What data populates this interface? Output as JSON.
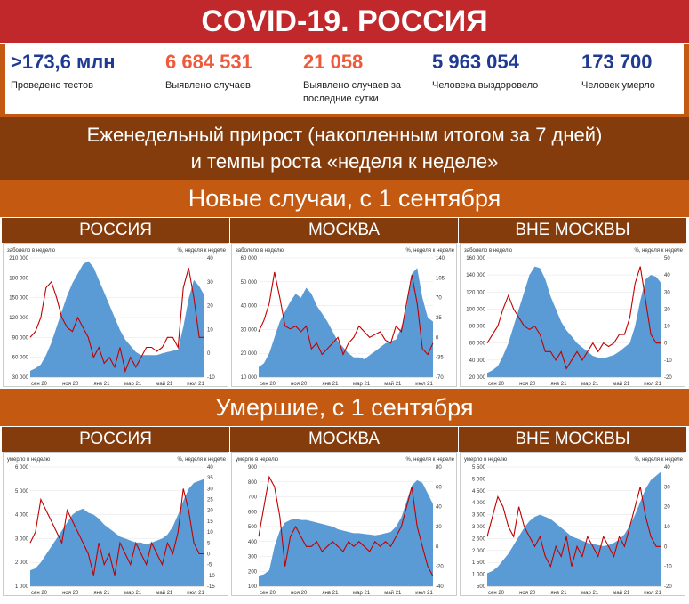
{
  "title": "COVID-19. РОССИЯ",
  "stats": [
    {
      "value": ">173,6 млн",
      "label": "Проведено тестов",
      "color": "#1f3a93"
    },
    {
      "value": "6 684 531",
      "label": "Выявлено случаев",
      "color": "#ee5a3a"
    },
    {
      "value": "21 058",
      "label": "Выявлено случаев за последние сутки",
      "color": "#ee5a3a"
    },
    {
      "value": "5 963 054",
      "label": "Человека выздоровело",
      "color": "#1f3a93"
    },
    {
      "value": "173 700",
      "label": "Человек умерло",
      "color": "#1f3a93"
    }
  ],
  "weekly_line1": "Еженедельный прирост (накопленным итогом за 7 дней)",
  "weekly_line2": "и темпы роста «неделя к неделе»",
  "section_new": "Новые случаи, с 1 сентября",
  "section_deaths": "Умершие, с 1 сентября",
  "regions": [
    "РОССИЯ",
    "МОСКВА",
    "ВНЕ МОСКВЫ"
  ],
  "colors": {
    "area": "#5b9bd5",
    "line": "#c00000",
    "title_bar": "#c0282b",
    "band_orange": "#c45911",
    "band_brown": "#843c0c"
  },
  "chart_data": [
    {
      "type": "area",
      "section": "new",
      "region": "РОССИЯ",
      "ylabel_left": "заболело в неделю",
      "ylabel_right": "%, неделя к неделе",
      "y_ticks": [
        "210 000",
        "180 000",
        "150 000",
        "120 000",
        "90 000",
        "60 000",
        "30 000"
      ],
      "y_range": [
        20000,
        210000
      ],
      "y2_ticks": [
        "40",
        "30",
        "20",
        "10",
        "0",
        "-10"
      ],
      "y2_range": [
        -15,
        45
      ],
      "x_ticks": [
        "сен 20",
        "ноя 20",
        "янв 21",
        "мар 21",
        "май 21",
        "июл 21"
      ],
      "area": [
        30000,
        34000,
        40000,
        55000,
        75000,
        100000,
        125000,
        150000,
        170000,
        185000,
        200000,
        205000,
        195000,
        175000,
        155000,
        135000,
        115000,
        95000,
        80000,
        70000,
        60000,
        55000,
        55000,
        55000,
        55000,
        58000,
        60000,
        62000,
        64000,
        100000,
        145000,
        175000,
        165000,
        150000
      ],
      "line": [
        5,
        8,
        15,
        30,
        33,
        25,
        15,
        10,
        8,
        15,
        10,
        5,
        -5,
        0,
        -8,
        -5,
        -10,
        0,
        -12,
        -5,
        -10,
        -5,
        0,
        0,
        -2,
        0,
        5,
        5,
        0,
        30,
        40,
        25,
        5,
        5
      ]
    },
    {
      "type": "area",
      "section": "new",
      "region": "МОСКВА",
      "ylabel_left": "заболело в неделю",
      "ylabel_right": "%, неделя к неделе",
      "y_ticks": [
        "60 000",
        "50 000",
        "40 000",
        "30 000",
        "20 000",
        "10 000"
      ],
      "y_range": [
        0,
        60000
      ],
      "y2_ticks": [
        "140",
        "105",
        "70",
        "35",
        "0",
        "-35",
        "-70"
      ],
      "y2_range": [
        -70,
        140
      ],
      "x_ticks": [
        "сен 20",
        "ноя 20",
        "янв 21",
        "мар 21",
        "май 21",
        "июл 21"
      ],
      "area": [
        5000,
        7000,
        12000,
        20000,
        28000,
        33000,
        38000,
        42000,
        40000,
        45000,
        42000,
        36000,
        32000,
        28000,
        23000,
        18000,
        15000,
        12000,
        10000,
        10000,
        9000,
        11000,
        13000,
        15000,
        17000,
        18000,
        19000,
        25000,
        35000,
        52000,
        55000,
        40000,
        30000,
        28000
      ],
      "line": [
        10,
        30,
        60,
        115,
        70,
        20,
        15,
        20,
        10,
        20,
        -20,
        -10,
        -30,
        -20,
        -10,
        0,
        -30,
        -10,
        0,
        20,
        10,
        0,
        5,
        10,
        -5,
        -10,
        20,
        10,
        60,
        110,
        60,
        -20,
        -30,
        -10
      ]
    },
    {
      "type": "area",
      "section": "new",
      "region": "ВНЕ МОСКВЫ",
      "ylabel_left": "заболело в неделю",
      "ylabel_right": "%, неделя к неделе",
      "y_ticks": [
        "160 000",
        "140 000",
        "120 000",
        "100 000",
        "80 000",
        "60 000",
        "40 000",
        "20 000"
      ],
      "y_range": [
        20000,
        160000
      ],
      "y2_ticks": [
        "50",
        "40",
        "30",
        "20",
        "10",
        "0",
        "-10",
        "-20"
      ],
      "y2_range": [
        -20,
        50
      ],
      "x_ticks": [
        "сен 20",
        "ноя 20",
        "янв 21",
        "мар 21",
        "май 21",
        "июл 21"
      ],
      "area": [
        25000,
        28000,
        33000,
        45000,
        60000,
        80000,
        100000,
        120000,
        140000,
        150000,
        148000,
        135000,
        115000,
        100000,
        85000,
        75000,
        68000,
        60000,
        55000,
        50000,
        45000,
        43000,
        42000,
        44000,
        46000,
        50000,
        55000,
        60000,
        80000,
        110000,
        135000,
        140000,
        138000,
        130000
      ],
      "line": [
        0,
        5,
        10,
        20,
        28,
        20,
        15,
        10,
        8,
        10,
        5,
        -5,
        -5,
        -10,
        -5,
        -15,
        -10,
        -5,
        -10,
        -5,
        0,
        -5,
        0,
        -2,
        0,
        5,
        5,
        15,
        35,
        45,
        25,
        5,
        0,
        0
      ]
    },
    {
      "type": "area",
      "section": "deaths",
      "region": "РОССИЯ",
      "ylabel_left": "умерло в неделю",
      "ylabel_right": "%, неделя к неделе",
      "y_ticks": [
        "6 000",
        "5 000",
        "4 000",
        "3 000",
        "2 000",
        "1 000"
      ],
      "y_range": [
        0,
        6000
      ],
      "y2_ticks": [
        "40",
        "35",
        "30",
        "25",
        "20",
        "15",
        "10",
        "5",
        "0",
        "-5",
        "-10",
        "-15"
      ],
      "y2_range": [
        -15,
        40
      ],
      "x_ticks": [
        "сен 20",
        "ноя 20",
        "янв 21",
        "мар 21",
        "май 21",
        "июл 21"
      ],
      "area": [
        800,
        900,
        1200,
        1600,
        2000,
        2400,
        2800,
        3200,
        3600,
        3800,
        3900,
        3700,
        3600,
        3400,
        3100,
        2900,
        2700,
        2500,
        2400,
        2300,
        2200,
        2200,
        2100,
        2200,
        2300,
        2400,
        2600,
        3000,
        3600,
        4300,
        4900,
        5200,
        5300,
        5400
      ],
      "line": [
        5,
        10,
        25,
        20,
        15,
        10,
        5,
        20,
        15,
        10,
        5,
        0,
        -10,
        5,
        -5,
        0,
        -10,
        5,
        0,
        -5,
        5,
        0,
        -5,
        5,
        0,
        -5,
        5,
        0,
        10,
        30,
        20,
        5,
        0,
        0
      ]
    },
    {
      "type": "area",
      "section": "deaths",
      "region": "МОСКВА",
      "ylabel_left": "умерло в неделю",
      "ylabel_right": "%, неделя к неделе",
      "y_ticks": [
        "900",
        "800",
        "700",
        "600",
        "500",
        "400",
        "300",
        "200",
        "100"
      ],
      "y_range": [
        0,
        900
      ],
      "y2_ticks": [
        "80",
        "60",
        "40",
        "20",
        "0",
        "-20",
        "-40"
      ],
      "y2_range": [
        -40,
        80
      ],
      "x_ticks": [
        "сен 20",
        "ноя 20",
        "янв 21",
        "мар 21",
        "май 21",
        "июл 21"
      ],
      "area": [
        80,
        90,
        120,
        300,
        420,
        480,
        500,
        510,
        500,
        500,
        490,
        480,
        470,
        460,
        450,
        430,
        420,
        410,
        400,
        400,
        395,
        390,
        385,
        390,
        400,
        410,
        450,
        520,
        640,
        760,
        800,
        780,
        700,
        620
      ],
      "line": [
        10,
        40,
        70,
        60,
        30,
        -20,
        10,
        20,
        10,
        0,
        0,
        5,
        -5,
        0,
        5,
        0,
        -5,
        5,
        0,
        5,
        0,
        -5,
        5,
        0,
        5,
        0,
        10,
        20,
        40,
        60,
        20,
        0,
        -20,
        -30
      ]
    },
    {
      "type": "area",
      "section": "deaths",
      "region": "ВНЕ МОСКВЫ",
      "ylabel_left": "умерло в неделю",
      "ylabel_right": "%, неделя к неделе",
      "y_ticks": [
        "5 500",
        "5 000",
        "4 500",
        "4 000",
        "3 500",
        "3 000",
        "2 500",
        "2 000",
        "1 500",
        "1 000",
        "500"
      ],
      "y_range": [
        0,
        5500
      ],
      "y2_ticks": [
        "40",
        "30",
        "20",
        "10",
        "0",
        "-10",
        "-20"
      ],
      "y2_range": [
        -20,
        40
      ],
      "x_ticks": [
        "сен 20",
        "ноя 20",
        "янв 21",
        "мар 21",
        "май 21",
        "июл 21"
      ],
      "area": [
        600,
        700,
        900,
        1200,
        1500,
        1900,
        2300,
        2700,
        3000,
        3200,
        3300,
        3200,
        3100,
        2900,
        2700,
        2500,
        2300,
        2200,
        2100,
        2000,
        1950,
        1900,
        1850,
        1900,
        2000,
        2150,
        2400,
        2800,
        3300,
        3900,
        4500,
        4900,
        5100,
        5300
      ],
      "line": [
        5,
        15,
        25,
        20,
        10,
        5,
        20,
        10,
        5,
        0,
        5,
        -5,
        -10,
        0,
        -5,
        5,
        -10,
        0,
        -5,
        5,
        0,
        -5,
        5,
        0,
        -5,
        5,
        0,
        10,
        20,
        30,
        15,
        5,
        0,
        0
      ]
    }
  ]
}
